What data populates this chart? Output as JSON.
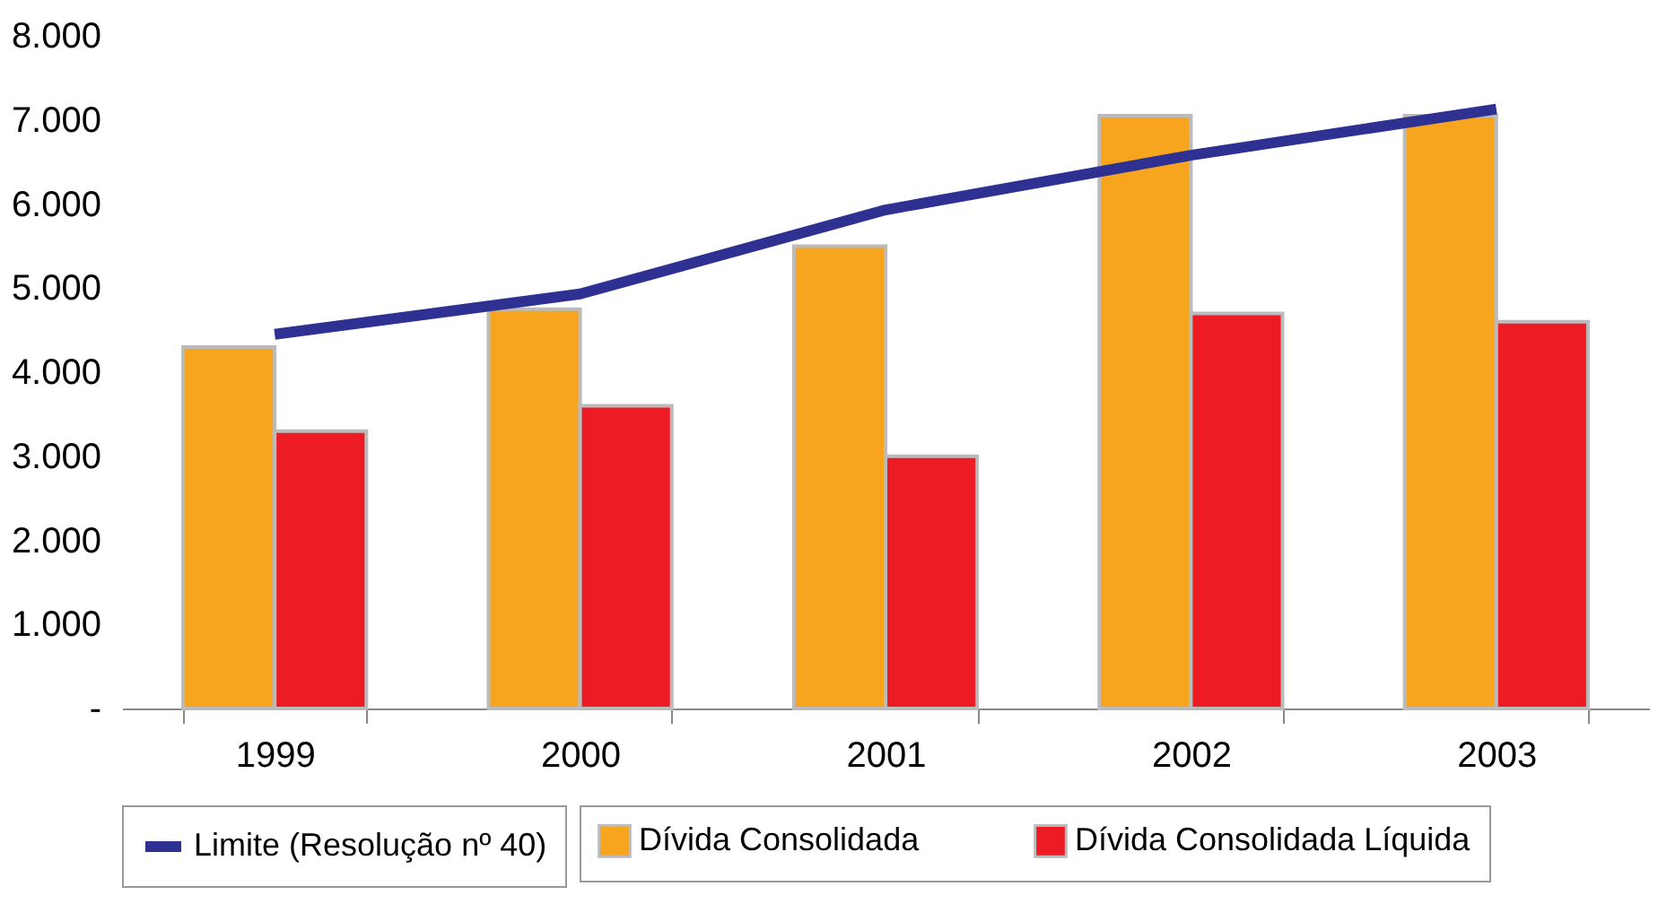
{
  "chart_data": {
    "type": "bar",
    "categories": [
      "1999",
      "2000",
      "2001",
      "2002",
      "2003"
    ],
    "series": [
      {
        "name": "Dívida Consolidada",
        "color": "#f7a51e",
        "values": [
          4300,
          4750,
          5500,
          7050,
          7050
        ]
      },
      {
        "name": "Dívida Consolidada Líquida",
        "color": "#ed1c24",
        "values": [
          3300,
          3600,
          3000,
          4700,
          4600
        ]
      },
      {
        "name": "Limite (Resolução nº 40)",
        "type": "line",
        "color": "#2e3192",
        "values": [
          4450,
          4930,
          5930,
          6580,
          7130
        ]
      }
    ],
    "ylim": [
      0,
      8000
    ],
    "yticks": [
      {
        "value": 0,
        "label": "-"
      },
      {
        "value": 1000,
        "label": "1.000"
      },
      {
        "value": 2000,
        "label": "2.000"
      },
      {
        "value": 3000,
        "label": "3.000"
      },
      {
        "value": 4000,
        "label": "4.000"
      },
      {
        "value": 5000,
        "label": "5.000"
      },
      {
        "value": 6000,
        "label": "6.000"
      },
      {
        "value": 7000,
        "label": "7.000"
      },
      {
        "value": 8000,
        "label": "8.000"
      }
    ],
    "grid": false,
    "legend": "bottom"
  }
}
